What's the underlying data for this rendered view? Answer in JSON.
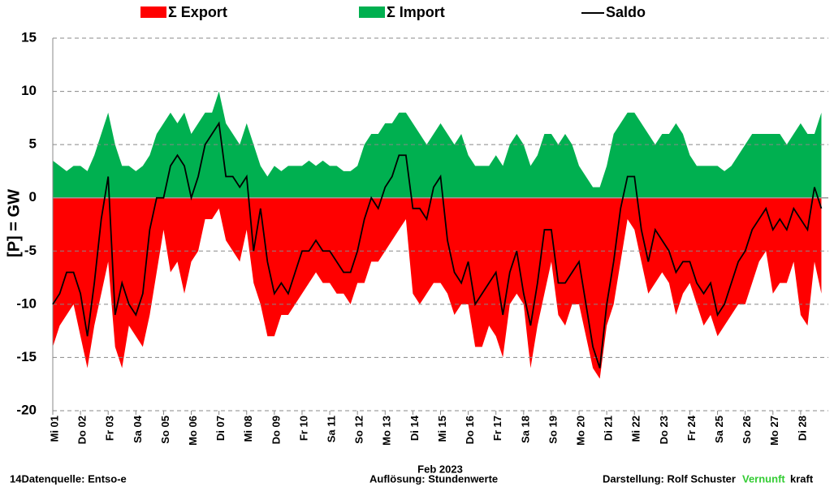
{
  "chart_data": {
    "type": "area",
    "y_label": "[P]  = GW",
    "x_label": "Feb 2023",
    "source": "14Datenquelle: Entso-e",
    "resolution": "Auflösung: Stundenwerte",
    "author": "Darstellung:  Rolf Schuster",
    "brand_a": "Vernunft",
    "brand_b": "kraft",
    "ylim": [
      -20,
      15
    ],
    "yticks": [
      15,
      10,
      5,
      0,
      -5,
      -10,
      -15,
      -20
    ],
    "xlim": [
      0,
      28
    ],
    "xticks": [
      {
        "value": 0,
        "label": "Mi 01"
      },
      {
        "value": 1,
        "label": "Do 02"
      },
      {
        "value": 2,
        "label": "Fr 03"
      },
      {
        "value": 3,
        "label": "Sa 04"
      },
      {
        "value": 4,
        "label": "So 05"
      },
      {
        "value": 5,
        "label": "Mo 06"
      },
      {
        "value": 6,
        "label": "Di 07"
      },
      {
        "value": 7,
        "label": "Mi 08"
      },
      {
        "value": 8,
        "label": "Do 09"
      },
      {
        "value": 9,
        "label": "Fr 10"
      },
      {
        "value": 10,
        "label": "Sa 11"
      },
      {
        "value": 11,
        "label": "So 12"
      },
      {
        "value": 12,
        "label": "Mo 13"
      },
      {
        "value": 13,
        "label": "Di 14"
      },
      {
        "value": 14,
        "label": "Mi 15"
      },
      {
        "value": 15,
        "label": "Do 16"
      },
      {
        "value": 16,
        "label": "Fr 17"
      },
      {
        "value": 17,
        "label": "Sa 18"
      },
      {
        "value": 18,
        "label": "So 19"
      },
      {
        "value": 19,
        "label": "Mo 20"
      },
      {
        "value": 20,
        "label": "Di 21"
      },
      {
        "value": 21,
        "label": "Mi 22"
      },
      {
        "value": 22,
        "label": "Do 23"
      },
      {
        "value": 23,
        "label": "Fr 24"
      },
      {
        "value": 24,
        "label": "Sa 25"
      },
      {
        "value": 25,
        "label": "So 26"
      },
      {
        "value": 26,
        "label": "Mo 27"
      },
      {
        "value": 27,
        "label": "Di 28"
      }
    ],
    "grid": true,
    "x": [
      0,
      0.25,
      0.5,
      0.75,
      1,
      1.25,
      1.5,
      1.75,
      2,
      2.25,
      2.5,
      2.75,
      3,
      3.25,
      3.5,
      3.75,
      4,
      4.25,
      4.5,
      4.75,
      5,
      5.25,
      5.5,
      5.75,
      6,
      6.25,
      6.5,
      6.75,
      7,
      7.25,
      7.5,
      7.75,
      8,
      8.25,
      8.5,
      8.75,
      9,
      9.25,
      9.5,
      9.75,
      10,
      10.25,
      10.5,
      10.75,
      11,
      11.25,
      11.5,
      11.75,
      12,
      12.25,
      12.5,
      12.75,
      13,
      13.25,
      13.5,
      13.75,
      14,
      14.25,
      14.5,
      14.75,
      15,
      15.25,
      15.5,
      15.75,
      16,
      16.25,
      16.5,
      16.75,
      17,
      17.25,
      17.5,
      17.75,
      18,
      18.25,
      18.5,
      18.75,
      19,
      19.25,
      19.5,
      19.75,
      20,
      20.25,
      20.5,
      20.75,
      21,
      21.25,
      21.5,
      21.75,
      22,
      22.25,
      22.5,
      22.75,
      23,
      23.25,
      23.5,
      23.75,
      24,
      24.25,
      24.5,
      24.75,
      25,
      25.25,
      25.5,
      25.75,
      26,
      26.25,
      26.5,
      26.75,
      27,
      27.25,
      27.5,
      27.75
    ],
    "series": [
      {
        "name": "Σ Export",
        "color": "#ff0000",
        "kind": "area",
        "values": [
          -14,
          -12,
          -11,
          -10,
          -13,
          -16,
          -12,
          -9,
          -6,
          -14,
          -16,
          -12,
          -13,
          -14,
          -11,
          -7,
          -3,
          -7,
          -6,
          -9,
          -6,
          -5,
          -2,
          -2,
          -1,
          -4,
          -5,
          -6,
          -3,
          -8,
          -10,
          -13,
          -13,
          -11,
          -11,
          -10,
          -9,
          -8,
          -7,
          -8,
          -8,
          -9,
          -9,
          -10,
          -8,
          -8,
          -6,
          -6,
          -5,
          -4,
          -3,
          -2,
          -9,
          -10,
          -9,
          -8,
          -8,
          -9,
          -11,
          -10,
          -10,
          -14,
          -14,
          -12,
          -13,
          -15,
          -10,
          -9,
          -10,
          -16,
          -12,
          -9,
          -6,
          -11,
          -12,
          -10,
          -10,
          -13,
          -16,
          -17,
          -12,
          -10,
          -6,
          -2,
          -3,
          -6,
          -9,
          -8,
          -7,
          -8,
          -11,
          -9,
          -8,
          -10,
          -12,
          -11,
          -13,
          -12,
          -11,
          -10,
          -10,
          -8,
          -6,
          -5,
          -9,
          -8,
          -8,
          -6,
          -11,
          -12,
          -6,
          -9
        ]
      },
      {
        "name": "Σ Import",
        "color": "#00b050",
        "kind": "area",
        "values": [
          3.5,
          3,
          2.5,
          3,
          3,
          2.5,
          4,
          6,
          8,
          5,
          3,
          3,
          2.5,
          3,
          4,
          6,
          7,
          8,
          7,
          8,
          6,
          7,
          8,
          8,
          10,
          7,
          6,
          5,
          7,
          5,
          3,
          2,
          3,
          2.5,
          3,
          3,
          3,
          3.5,
          3,
          3.5,
          3,
          3,
          2.5,
          2.5,
          3,
          5,
          6,
          6,
          7,
          7,
          8,
          8,
          7,
          6,
          5,
          6,
          7,
          6,
          5,
          6,
          4,
          3,
          3,
          3,
          4,
          3,
          5,
          6,
          5,
          3,
          4,
          6,
          6,
          5,
          6,
          5,
          3,
          2,
          1,
          1,
          3,
          6,
          7,
          8,
          8,
          7,
          6,
          5,
          6,
          6,
          7,
          6,
          4,
          3,
          3,
          3,
          3,
          2.5,
          3,
          4,
          5,
          6,
          6,
          6,
          6,
          6,
          5,
          6,
          7,
          6,
          6,
          8
        ]
      },
      {
        "name": "Saldo",
        "color": "#000000",
        "kind": "line",
        "values": [
          -10,
          -9,
          -7,
          -7,
          -9,
          -13,
          -8,
          -2,
          2,
          -11,
          -8,
          -10,
          -11,
          -9,
          -3,
          0,
          0,
          3,
          4,
          3,
          0,
          2,
          5,
          6,
          7,
          2,
          2,
          1,
          2,
          -5,
          -1,
          -6,
          -9,
          -8,
          -9,
          -7,
          -5,
          -5,
          -4,
          -5,
          -5,
          -6,
          -7,
          -7,
          -5,
          -2,
          0,
          -1,
          1,
          2,
          4,
          4,
          -1,
          -1,
          -2,
          1,
          2,
          -4,
          -7,
          -8,
          -6,
          -10,
          -9,
          -8,
          -7,
          -11,
          -7,
          -5,
          -9,
          -12,
          -8,
          -3,
          -3,
          -8,
          -8,
          -7,
          -6,
          -10,
          -14,
          -16,
          -10,
          -6,
          -1,
          2,
          2,
          -3,
          -6,
          -3,
          -4,
          -5,
          -7,
          -6,
          -6,
          -8,
          -9,
          -8,
          -11,
          -10,
          -8,
          -6,
          -5,
          -3,
          -2,
          -1,
          -3,
          -2,
          -3,
          -1,
          -2,
          -3,
          1,
          -1
        ]
      }
    ]
  }
}
